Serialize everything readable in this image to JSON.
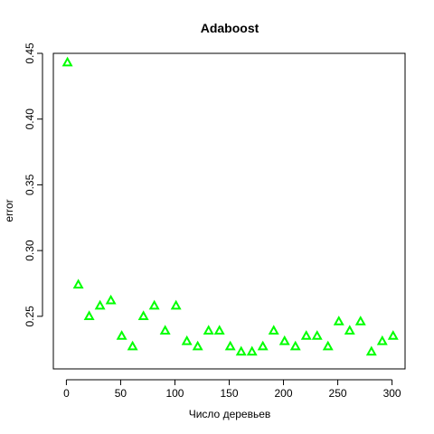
{
  "chart_data": {
    "type": "scatter",
    "title": "Adaboost",
    "xlabel": "Число деревьев",
    "ylabel": "error",
    "xlim": [
      -12,
      312
    ],
    "ylim": [
      0.21,
      0.45
    ],
    "xticks": [
      0,
      50,
      100,
      150,
      200,
      250,
      300
    ],
    "xtick_labels": [
      "0",
      "50",
      "100",
      "150",
      "200",
      "250",
      "300"
    ],
    "yticks": [
      0.25,
      0.3,
      0.35,
      0.4,
      0.45
    ],
    "ytick_labels": [
      "0.25",
      "0.30",
      "0.35",
      "0.40",
      "0.45"
    ],
    "grid": false,
    "marker": "triangle",
    "color": "#00ff00",
    "series": [
      {
        "name": "error",
        "x": [
          1,
          11,
          21,
          31,
          41,
          51,
          61,
          71,
          81,
          91,
          101,
          111,
          121,
          131,
          141,
          151,
          161,
          171,
          181,
          191,
          201,
          211,
          221,
          231,
          241,
          251,
          261,
          271,
          281,
          291,
          301
        ],
        "y": [
          0.443,
          0.274,
          0.25,
          0.258,
          0.262,
          0.235,
          0.227,
          0.25,
          0.258,
          0.239,
          0.258,
          0.231,
          0.227,
          0.239,
          0.239,
          0.227,
          0.223,
          0.223,
          0.227,
          0.239,
          0.231,
          0.227,
          0.235,
          0.235,
          0.227,
          0.246,
          0.239,
          0.246,
          0.223,
          0.231,
          0.235
        ]
      }
    ]
  }
}
